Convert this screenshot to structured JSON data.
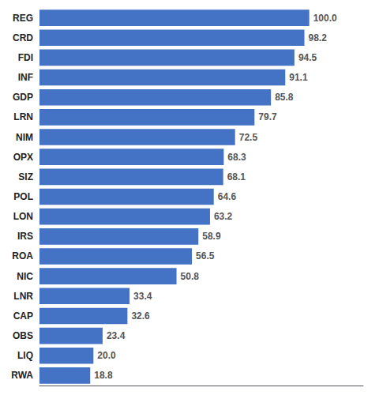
{
  "chart_data": {
    "type": "bar",
    "orientation": "horizontal",
    "categories": [
      "REG",
      "CRD",
      "FDI",
      "INF",
      "GDP",
      "LRN",
      "NIM",
      "OPX",
      "SIZ",
      "POL",
      "LON",
      "IRS",
      "ROA",
      "NIC",
      "LNR",
      "CAP",
      "OBS",
      "LIQ",
      "RWA"
    ],
    "values": [
      100.0,
      98.2,
      94.5,
      91.1,
      85.8,
      79.7,
      72.5,
      68.3,
      68.1,
      64.6,
      63.2,
      58.9,
      56.5,
      50.8,
      33.4,
      32.6,
      23.4,
      20.0,
      18.8
    ],
    "value_labels": [
      "100.0",
      "98.2",
      "94.5",
      "91.1",
      "85.8",
      "79.7",
      "72.5",
      "68.3",
      "68.1",
      "64.6",
      "63.2",
      "58.9",
      "56.5",
      "50.8",
      "33.4",
      "32.6",
      "23.4",
      "20.0",
      "18.8"
    ],
    "color": "#4472C4",
    "xlim": [
      0,
      120
    ],
    "data_labels": true,
    "tick_labels": "y",
    "grid": false
  }
}
